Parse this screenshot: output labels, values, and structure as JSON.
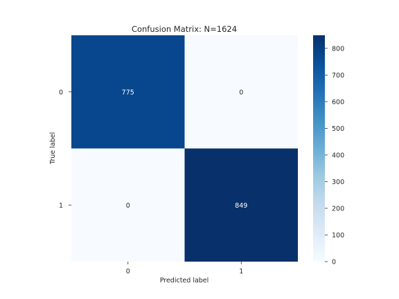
{
  "chart_data": {
    "type": "heatmap",
    "title": "Confusion Matrix: N=1624",
    "xlabel": "Predicted label",
    "ylabel": "True label",
    "x_categories": [
      "0",
      "1"
    ],
    "y_categories": [
      "0",
      "1"
    ],
    "matrix": [
      [
        775,
        0
      ],
      [
        0,
        849
      ]
    ],
    "colorbar": {
      "min": 0,
      "max": 849,
      "ticks": [
        0,
        100,
        200,
        300,
        400,
        500,
        600,
        700,
        800
      ],
      "tick_labels": [
        "0",
        "100",
        "200",
        "300",
        "400",
        "500",
        "600",
        "700",
        "800"
      ]
    },
    "colormap": "Blues",
    "colormap_light": "#f7fbff",
    "colormap_dark": "#08306b",
    "annotation_color_light": "#ffffff",
    "annotation_color_dark": "#262626",
    "grid": false
  }
}
